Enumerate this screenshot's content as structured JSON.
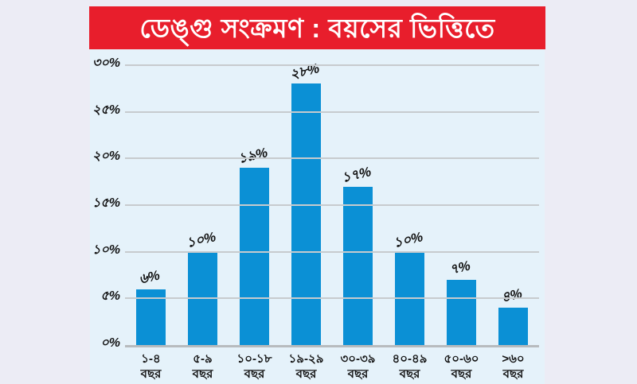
{
  "banner": {
    "title": "ডেঙ্গু সংক্রমণ : বয়সের ভিত্তিতে"
  },
  "colors": {
    "page_background": "#ececf5",
    "banner_background": "#e81e2c",
    "banner_text": "#ffffff",
    "panel_background": "#e5f2fa",
    "bar": "#0b90d5",
    "gridline": "#c7cbce",
    "axis_line": "#b7bbbe",
    "label_text": "#111111"
  },
  "chart_data": {
    "type": "bar",
    "title": "ডেঙ্গু সংক্রমণ : বয়সের ভিত্তিতে",
    "categories": [
      "১-৪ বছর",
      "৫-৯ বছর",
      "১০-১৮ বছর",
      "১৯-২৯ বছর",
      "৩০-৩৯ বছর",
      "৪০-৪৯ বছর",
      "৫০-৬০ বছর",
      ">৬০ বছর"
    ],
    "category_ranges": [
      "১-৪",
      "৫-৯",
      "১০-১৮",
      "১৯-২৯",
      "৩০-৩৯",
      "৪০-৪৯",
      "৫০-৬০",
      ">৬০"
    ],
    "category_unit": "বছর",
    "values": [
      6,
      10,
      19,
      28,
      17,
      10,
      7,
      4
    ],
    "value_labels": [
      "৬%",
      "১০%",
      "১৯%",
      "২৮%",
      "১৭%",
      "১০%",
      "৭%",
      "৪%"
    ],
    "ytick_values": [
      0,
      5,
      10,
      15,
      20,
      25,
      30
    ],
    "ytick_labels": [
      "০%",
      "৫%",
      "১০%",
      "১৫%",
      "২০%",
      "২৫%",
      "৩০%"
    ],
    "ylim": [
      0,
      30
    ],
    "xlabel": "",
    "ylabel": "",
    "grid": true,
    "legend": false
  }
}
